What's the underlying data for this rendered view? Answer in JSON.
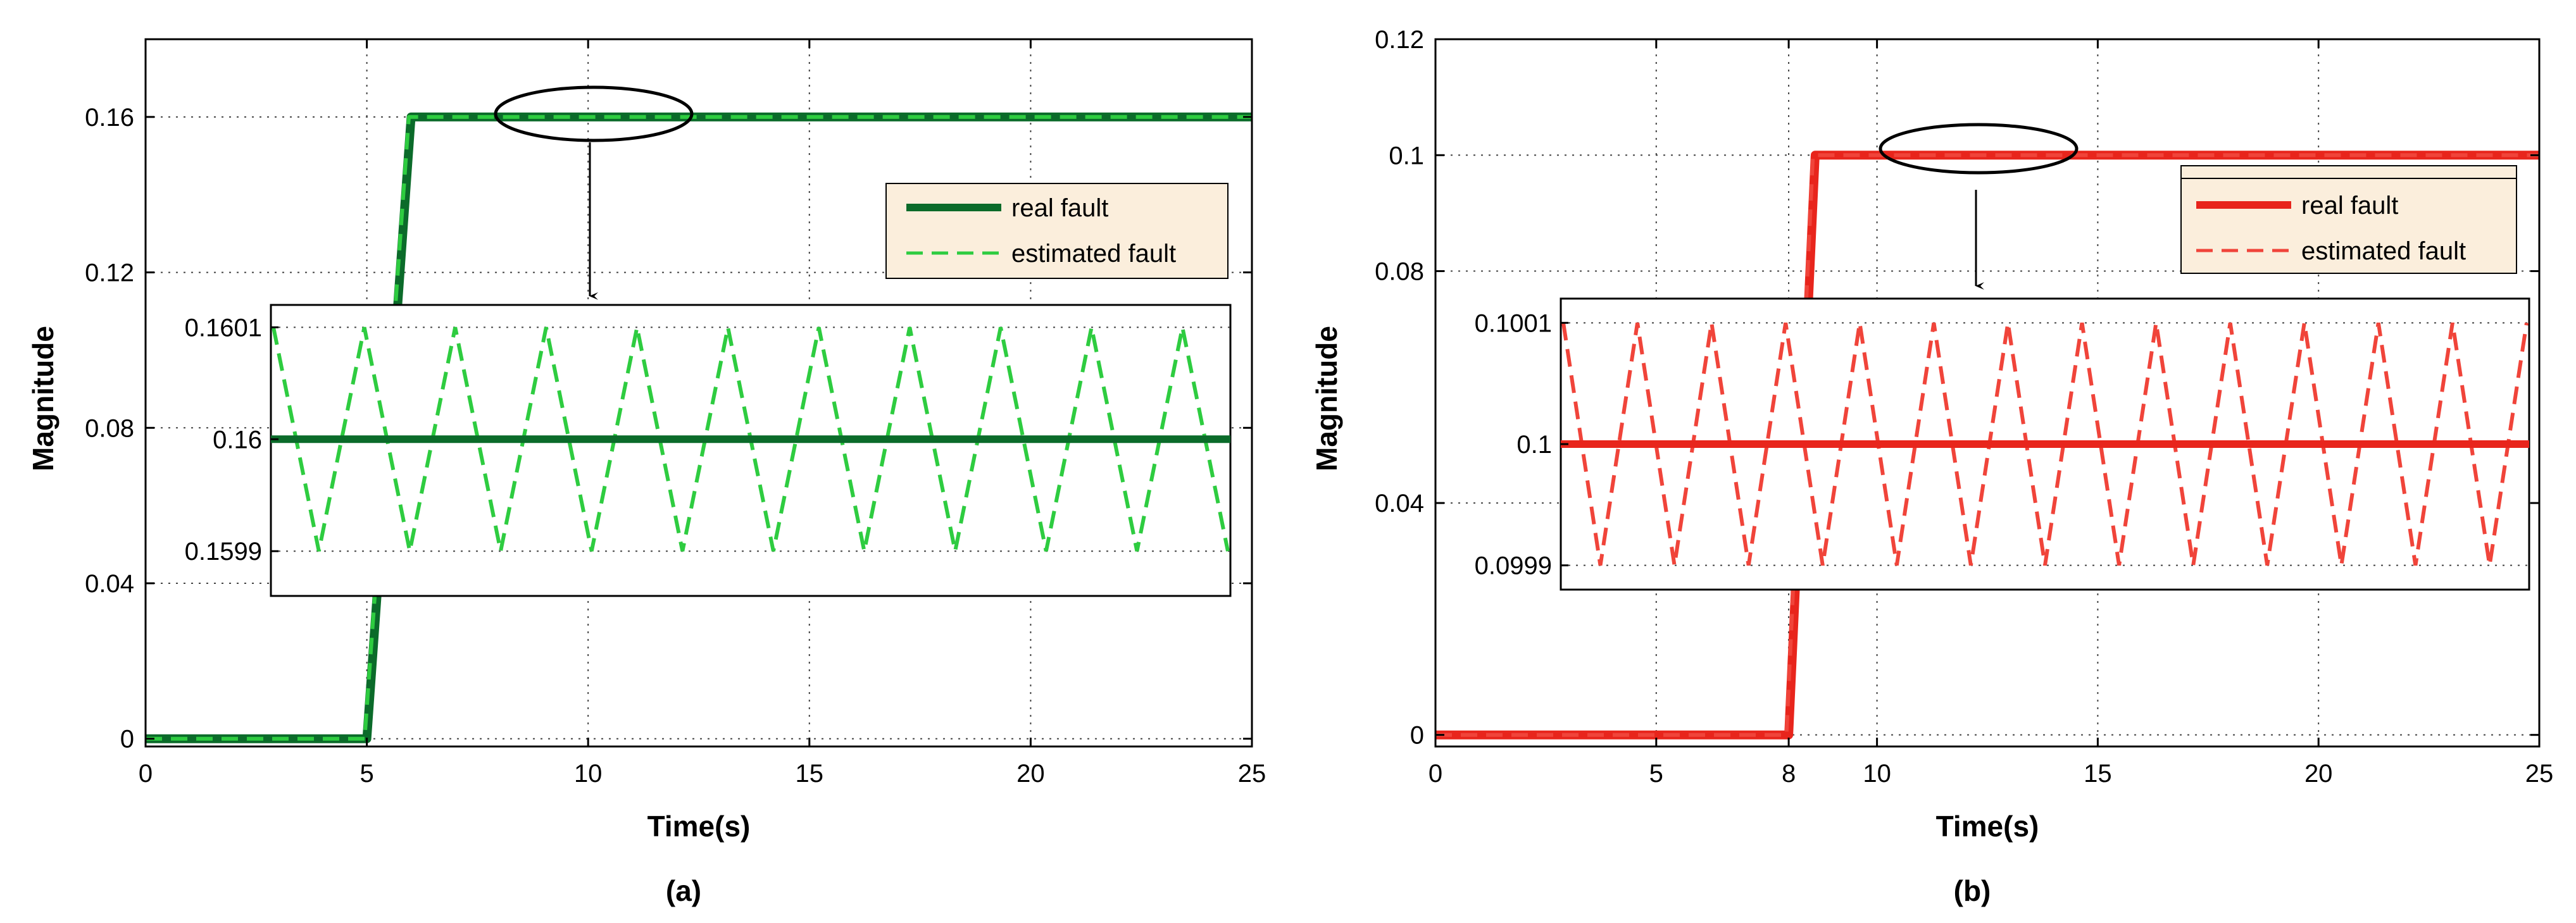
{
  "chart_data": [
    {
      "type": "line",
      "caption": "(a)",
      "xlabel": "Time(s)",
      "ylabel": "Magnitude",
      "xlim": [
        0,
        25
      ],
      "ylim": [
        -0.002,
        0.18
      ],
      "xticks": [
        0,
        5,
        10,
        15,
        20,
        25
      ],
      "xtick_labels": [
        "0",
        "5",
        "10",
        "15",
        "20",
        "25"
      ],
      "yticks": [
        0,
        0.04,
        0.08,
        0.12,
        0.16
      ],
      "ytick_labels": [
        "0",
        "0.04",
        "0.08",
        "0.12",
        "0.16"
      ],
      "grid": true,
      "legend_position": "right",
      "series": [
        {
          "name": "real fault",
          "style": "solid",
          "color": "#0b6b2a",
          "x": [
            0,
            5,
            6,
            25
          ],
          "y": [
            0,
            0,
            0.16,
            0.16
          ]
        },
        {
          "name": "estimated fault",
          "style": "dashed",
          "color": "#2ecc40",
          "x": [
            0,
            4.95,
            5.95,
            25
          ],
          "y": [
            0,
            0,
            0.16,
            0.16
          ]
        }
      ],
      "inset": {
        "yticks": [
          0.1599,
          0.16,
          0.1601
        ],
        "ytick_labels": [
          "0.1599",
          "0.16",
          "0.1601"
        ],
        "ylim": [
          0.15986,
          0.16012
        ],
        "real_value": 0.16,
        "est_min": 0.1599,
        "est_max": 0.1601,
        "est_zigzag": [
          0.1601,
          0.1599,
          0.1601,
          0.1599,
          0.1601,
          0.1599,
          0.1601,
          0.1599,
          0.1601,
          0.1599,
          0.1601,
          0.1599,
          0.1601,
          0.1599,
          0.1601,
          0.1599,
          0.1601,
          0.1599,
          0.1601,
          0.1599,
          0.1601,
          0.1599
        ]
      },
      "annotation": "ellipse on plateau with arrow pointing to zoomed inset"
    },
    {
      "type": "line",
      "caption": "(b)",
      "xlabel": "Time(s)",
      "ylabel": "Magnitude",
      "xlim": [
        0,
        25
      ],
      "ylim": [
        -0.002,
        0.12
      ],
      "xticks": [
        0,
        5,
        8,
        10,
        15,
        20,
        25
      ],
      "xtick_labels": [
        "0",
        "5",
        "8",
        "10",
        "15",
        "20",
        "25"
      ],
      "yticks": [
        0,
        0.04,
        0.08,
        0.1,
        0.12
      ],
      "ytick_labels": [
        "0",
        "0.04",
        "0.08",
        "0.1",
        "0.12"
      ],
      "grid": true,
      "legend_position": "right",
      "series": [
        {
          "name": "real fault",
          "style": "solid",
          "color": "#e8251c",
          "x": [
            0,
            8,
            8.6,
            25
          ],
          "y": [
            0,
            0,
            0.1,
            0.1
          ]
        },
        {
          "name": "estimated fault",
          "style": "dashed",
          "color": "#f0443a",
          "x": [
            0,
            7.95,
            8.55,
            25
          ],
          "y": [
            0,
            0,
            0.1,
            0.1
          ]
        }
      ],
      "inset": {
        "yticks": [
          0.0999,
          0.1,
          0.1001
        ],
        "ytick_labels": [
          "0.0999",
          "0.1",
          "0.1001"
        ],
        "ylim": [
          0.09988,
          0.10012
        ],
        "real_value": 0.1,
        "est_min": 0.0999,
        "est_max": 0.1001,
        "est_zigzag": [
          0.1001,
          0.0999,
          0.1001,
          0.0999,
          0.1001,
          0.0999,
          0.1001,
          0.0999,
          0.1001,
          0.0999,
          0.1001,
          0.0999,
          0.1001,
          0.0999,
          0.1001,
          0.0999,
          0.1001,
          0.0999,
          0.1001,
          0.0999,
          0.1001,
          0.0999,
          0.1001,
          0.0999,
          0.1001,
          0.0999,
          0.1001
        ]
      },
      "annotation": "ellipse on plateau with arrow pointing to zoomed inset"
    }
  ]
}
